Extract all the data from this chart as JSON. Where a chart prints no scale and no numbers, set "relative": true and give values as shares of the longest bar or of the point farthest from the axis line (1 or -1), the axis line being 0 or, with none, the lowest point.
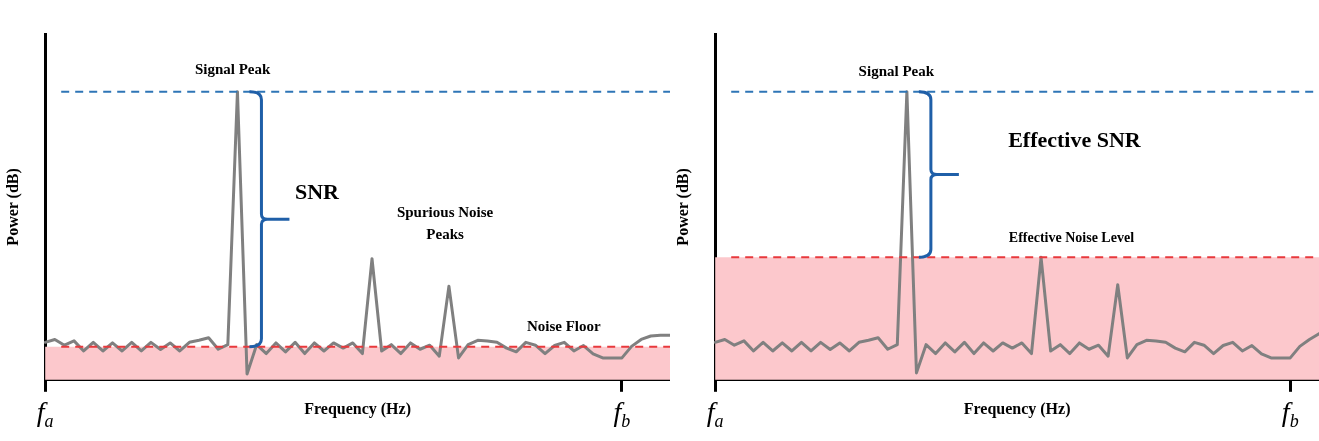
{
  "chart_data": [
    {
      "type": "line",
      "xlabel": "Frequency (Hz)",
      "ylabel": "Power (dB)",
      "relative": true,
      "marker": "none",
      "categories": [
        "f$_{a}$",
        null,
        null,
        null,
        null,
        null,
        null,
        null,
        null,
        null,
        null,
        null,
        null,
        null,
        null,
        null,
        null,
        null,
        null,
        null,
        null,
        null,
        null,
        null,
        null,
        null,
        null,
        null,
        null,
        null,
        null,
        null,
        null,
        null,
        null,
        null,
        null,
        null,
        null,
        null,
        null,
        null,
        null,
        null,
        null,
        null,
        null,
        null,
        null,
        null,
        null,
        null,
        null,
        null,
        null,
        null,
        null,
        null,
        null,
        null,
        "f$_{b}$",
        null,
        null,
        null,
        null,
        null
      ],
      "series": [
        {
          "color": "#808080",
          "values": [
            0.13,
            0.14,
            0.12,
            0.135,
            0.1,
            0.13,
            0.1,
            0.128,
            0.1,
            0.13,
            0.1,
            0.13,
            0.105,
            0.128,
            0.1,
            0.13,
            0.137,
            0.146,
            0.106,
            0.122,
            1,
            0.02,
            0.122,
            0.091,
            0.128,
            0.097,
            0.13,
            0.091,
            0.128,
            0.1,
            0.128,
            0.11,
            0.128,
            0.091,
            0.42,
            0.1,
            0.122,
            0.091,
            0.128,
            0.106,
            0.12,
            0.082,
            0.325,
            0.076,
            0.122,
            0.137,
            0.135,
            0.13,
            0.11,
            0.097,
            0.13,
            0.12,
            0.091,
            0.119,
            0.13,
            0.1,
            0.119,
            0.09,
            0.076,
            0.076,
            0.076,
            0.116,
            0.14,
            0.152,
            0.155,
            0.155
          ]
        }
      ],
      "ref_lines": [
        {
          "axis": "y",
          "value": 1,
          "color": "#2e75b6",
          "line_style": "dashed"
        },
        {
          "axis": "y",
          "value": 0.115,
          "color": "#e8393c",
          "line_style": "dashed"
        }
      ],
      "bands": [
        {
          "axis": "y",
          "from": 0,
          "to": 0.115,
          "color": "#fcc8cc"
        }
      ],
      "annotations": [
        {
          "text": "Signal Peak",
          "y": 1
        },
        "SNR",
        "Spurious Noise Peaks",
        {
          "text": "Noise Floor",
          "y": 0.115
        }
      ]
    },
    {
      "type": "line",
      "xlabel": "Frequency (Hz)",
      "ylabel": "Power (dB)",
      "relative": true,
      "marker": "none",
      "categories": [
        "f$_{a}$",
        null,
        null,
        null,
        null,
        null,
        null,
        null,
        null,
        null,
        null,
        null,
        null,
        null,
        null,
        null,
        null,
        null,
        null,
        null,
        null,
        null,
        null,
        null,
        null,
        null,
        null,
        null,
        null,
        null,
        null,
        null,
        null,
        null,
        null,
        null,
        null,
        null,
        null,
        null,
        null,
        null,
        null,
        null,
        null,
        null,
        null,
        null,
        null,
        null,
        null,
        null,
        null,
        null,
        null,
        null,
        null,
        null,
        null,
        null,
        "f$_{b}$",
        null,
        null,
        null
      ],
      "series": [
        {
          "color": "#808080",
          "values": [
            0.13,
            0.14,
            0.12,
            0.135,
            0.1,
            0.13,
            0.1,
            0.128,
            0.1,
            0.13,
            0.1,
            0.13,
            0.105,
            0.128,
            0.1,
            0.13,
            0.137,
            0.146,
            0.106,
            0.122,
            1,
            0.024,
            0.122,
            0.091,
            0.128,
            0.097,
            0.13,
            0.091,
            0.128,
            0.1,
            0.128,
            0.11,
            0.128,
            0.091,
            0.425,
            0.1,
            0.122,
            0.091,
            0.128,
            0.106,
            0.12,
            0.082,
            0.33,
            0.076,
            0.122,
            0.137,
            0.135,
            0.13,
            0.11,
            0.097,
            0.13,
            0.12,
            0.091,
            0.119,
            0.13,
            0.1,
            0.119,
            0.09,
            0.076,
            0.076,
            0.076,
            0.116,
            0.14,
            0.16
          ]
        }
      ],
      "ref_lines": [
        {
          "axis": "y",
          "value": 1,
          "color": "#2e75b6",
          "line_style": "dashed"
        },
        {
          "axis": "y",
          "value": 0.425,
          "color": "#e8393c",
          "line_style": "dashed"
        }
      ],
      "bands": [
        {
          "axis": "y",
          "from": 0,
          "to": 0.425,
          "color": "#fcc8cc"
        }
      ],
      "annotations": [
        {
          "text": "Signal Peak",
          "y": 1
        },
        "Effective SNR",
        {
          "text": "Effective Noise Level",
          "y": 0.425
        }
      ]
    }
  ]
}
